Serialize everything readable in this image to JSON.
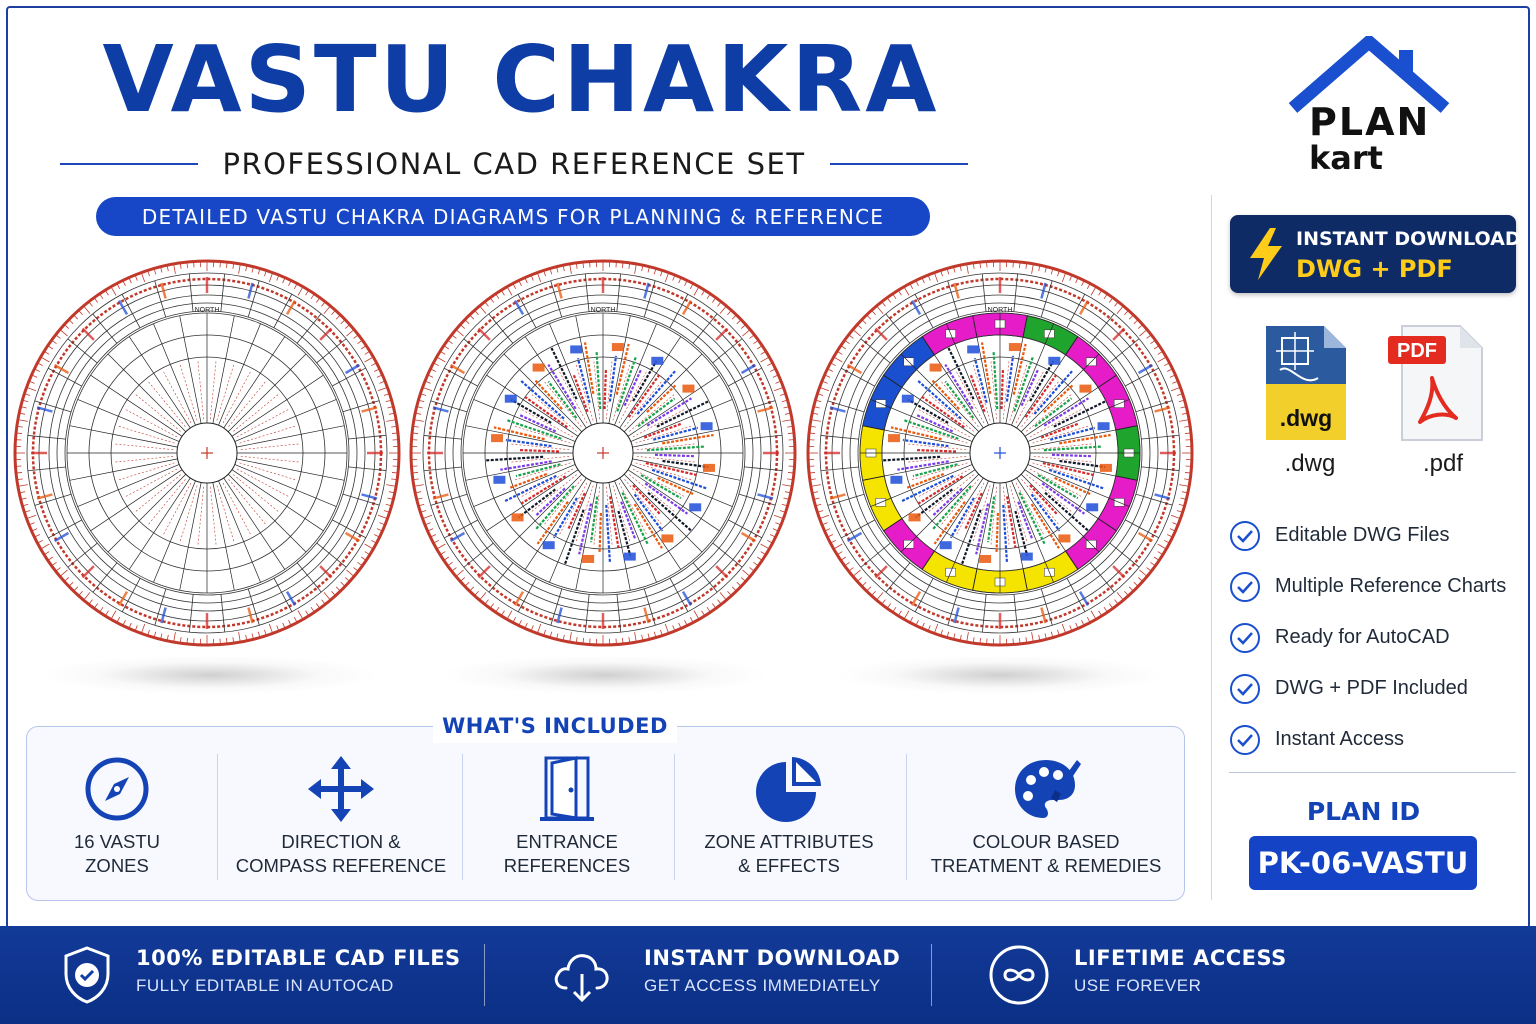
{
  "header": {
    "title": "VASTU CHAKRA",
    "subtitle": "PROFESSIONAL CAD REFERENCE SET",
    "tagline": "DETAILED VASTU CHAKRA DIAGRAMS FOR PLANNING & REFERENCE"
  },
  "brand": {
    "line1": "PLAN",
    "line2": "kart",
    "color": "#1a4fd0"
  },
  "download_card": {
    "line1": "INSTANT DOWNLOAD",
    "line2": "DWG + PDF",
    "icon": "lightning-bolt-icon"
  },
  "files": [
    {
      "label": ".dwg",
      "badge": ".dwg",
      "icon": "dwg-file-icon"
    },
    {
      "label": ".pdf",
      "badge": "PDF",
      "icon": "pdf-file-icon"
    }
  ],
  "checklist": [
    "Editable DWG Files",
    "Multiple Reference Charts",
    "Ready for AutoCAD",
    "DWG + PDF Included",
    "Instant Access"
  ],
  "plan": {
    "label": "PLAN ID",
    "id": "PK-06-VASTU"
  },
  "charts": [
    {
      "heading": "NORTH",
      "variant": "plain"
    },
    {
      "heading": "NORTH",
      "variant": "annotated"
    },
    {
      "heading": "NORTH",
      "variant": "colour-coded"
    }
  ],
  "included": {
    "title": "WHAT'S INCLUDED",
    "items": [
      {
        "line1": "16 VASTU",
        "line2": "ZONES",
        "icon": "compass-icon"
      },
      {
        "line1": "DIRECTION &",
        "line2": "COMPASS REFERENCE",
        "icon": "move-arrows-icon"
      },
      {
        "line1": "ENTRANCE",
        "line2": "REFERENCES",
        "icon": "door-icon"
      },
      {
        "line1": "ZONE ATTRIBUTES",
        "line2": "& EFFECTS",
        "icon": "pie-chart-icon"
      },
      {
        "line1": "COLOUR BASED",
        "line2": "TREATMENT & REMEDIES",
        "icon": "palette-brush-icon"
      }
    ]
  },
  "footer": [
    {
      "title": "100% EDITABLE CAD FILES",
      "sub": "FULLY EDITABLE IN AUTOCAD",
      "icon": "shield-check-icon"
    },
    {
      "title": "INSTANT DOWNLOAD",
      "sub": "GET ACCESS IMMEDIATELY",
      "icon": "cloud-download-icon"
    },
    {
      "title": "LIFETIME ACCESS",
      "sub": "USE FOREVER",
      "icon": "infinity-icon"
    }
  ],
  "colors": {
    "primary": "#0f3da6",
    "accent_blue": "#1747c7",
    "navy": "#0f2b66",
    "gold": "#ffcc1a",
    "chart_red": "#c0392b",
    "ring_yellow": "#f5e400",
    "ring_magenta": "#e61cc8",
    "ring_green": "#1fa52d",
    "ring_blue": "#1a4fd0"
  }
}
